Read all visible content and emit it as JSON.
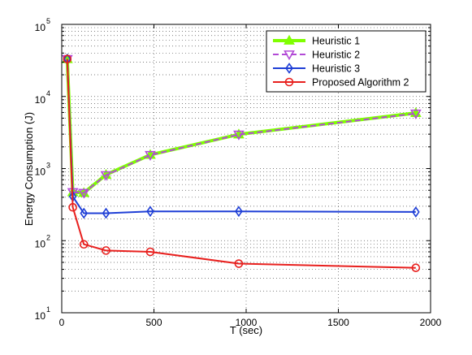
{
  "chart_data": {
    "type": "line",
    "title": "",
    "xlabel": "T (sec)",
    "ylabel": "Energy Consumption (J)",
    "xlim": [
      0,
      2000
    ],
    "ylim": [
      10,
      100000
    ],
    "yscale": "log",
    "grid": true,
    "legend_position": "top-right",
    "x_tick_labels": [
      "0",
      "500",
      "1000",
      "1500",
      "2000"
    ],
    "y_tick_labels": [
      {
        "base": "10",
        "exp": "1"
      },
      {
        "base": "10",
        "exp": "2"
      },
      {
        "base": "10",
        "exp": "3"
      },
      {
        "base": "10",
        "exp": "4"
      },
      {
        "base": "10",
        "exp": "5"
      }
    ],
    "x": [
      30,
      60,
      120,
      240,
      480,
      960,
      1920
    ],
    "series": [
      {
        "name": "Heuristic 1",
        "color": "#7fff00",
        "marker": "triangle-up",
        "linestyle": "solid",
        "values": [
          33000,
          470,
          460,
          820,
          1550,
          2980,
          5900
        ]
      },
      {
        "name": "Heuristic 2",
        "color": "#b24ad6",
        "marker": "triangle-down",
        "linestyle": "dashed",
        "values": [
          33000,
          470,
          460,
          810,
          1540,
          2960,
          5800
        ]
      },
      {
        "name": "Heuristic 3",
        "color": "#1f3fd6",
        "marker": "diamond",
        "linestyle": "solid",
        "values": [
          33000,
          410,
          240,
          240,
          255,
          255,
          250
        ]
      },
      {
        "name": "Proposed Algorithm 2",
        "color": "#e8201e",
        "marker": "circle",
        "linestyle": "solid",
        "values": [
          33000,
          290,
          89,
          73,
          70,
          48,
          42
        ]
      }
    ]
  }
}
